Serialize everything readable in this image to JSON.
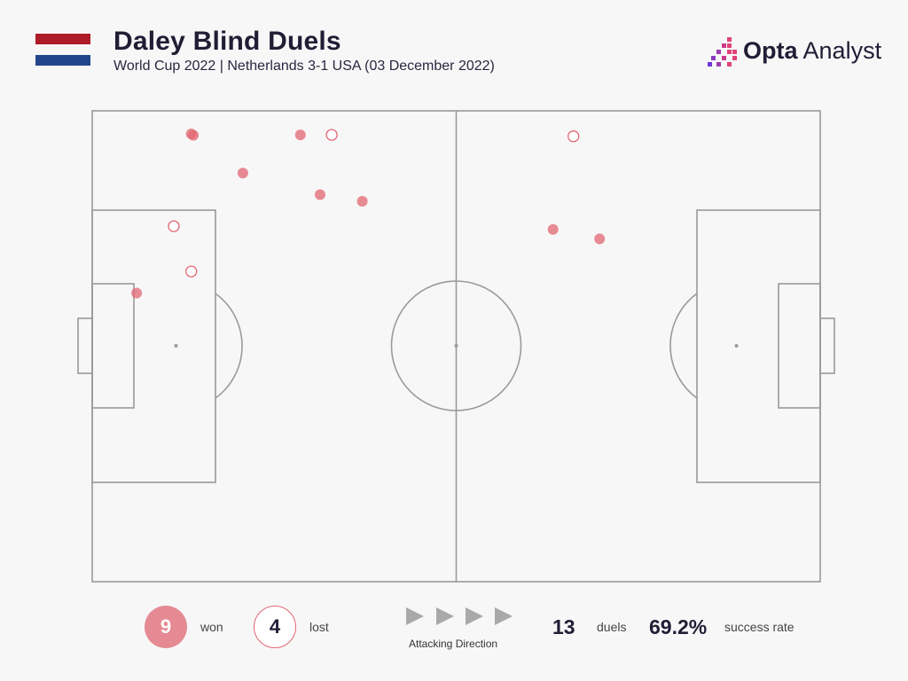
{
  "header": {
    "title": "Daley Blind Duels",
    "subtitle": "World Cup 2022 | Netherlands 3-1 USA (03 December 2022)",
    "brand_bold": "Opta",
    "brand_light": " Analyst",
    "flag_colors": [
      "#ae1c28",
      "#ffffff",
      "#21468b"
    ]
  },
  "chart_data": {
    "type": "scatter",
    "title": "Daley Blind Duels",
    "subtitle": "World Cup 2022 | Netherlands 3-1 USA (03 December 2022)",
    "pitch": {
      "length": 100,
      "width": 100,
      "attacking_direction": "left-to-right"
    },
    "series": [
      {
        "name": "won",
        "style": "filled",
        "color": "#e26673",
        "points": [
          {
            "x": 13.6,
            "y": 95.1
          },
          {
            "x": 13.9,
            "y": 94.8
          },
          {
            "x": 28.6,
            "y": 94.9
          },
          {
            "x": 20.7,
            "y": 86.8
          },
          {
            "x": 31.3,
            "y": 82.2
          },
          {
            "x": 37.1,
            "y": 80.8
          },
          {
            "x": 6.1,
            "y": 61.3
          },
          {
            "x": 69.7,
            "y": 72.8
          },
          {
            "x": 63.3,
            "y": 74.8
          }
        ]
      },
      {
        "name": "lost",
        "style": "hollow",
        "color": "#e26673",
        "points": [
          {
            "x": 32.9,
            "y": 94.9
          },
          {
            "x": 11.2,
            "y": 75.5
          },
          {
            "x": 13.6,
            "y": 65.9
          },
          {
            "x": 66.1,
            "y": 94.6
          }
        ]
      }
    ]
  },
  "summary": {
    "won_count": "9",
    "won_label": "won",
    "lost_count": "4",
    "lost_label": "lost",
    "attacking_direction_label": "Attacking Direction",
    "duels_count": "13",
    "duels_label": "duels",
    "success_rate": "69.2%",
    "success_label": "success rate"
  }
}
